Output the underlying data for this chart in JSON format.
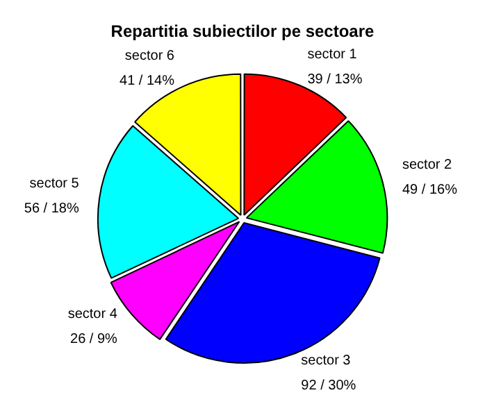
{
  "chart_data": {
    "type": "pie",
    "title": "Repartitia subiectilor pe sectoare",
    "categories": [
      "sector 1",
      "sector 2",
      "sector 3",
      "sector 4",
      "sector 5",
      "sector 6"
    ],
    "values": [
      39,
      49,
      92,
      26,
      56,
      41
    ],
    "colors": [
      "#ff0000",
      "#00ff00",
      "#0000ff",
      "#ff00ff",
      "#00ffff",
      "#ffff00"
    ],
    "value_labels": [
      "39 / 13%",
      "49 / 16%",
      "92 / 30%",
      "26 / 9%",
      "56 / 18%",
      "41 / 14%"
    ],
    "legend": false
  }
}
